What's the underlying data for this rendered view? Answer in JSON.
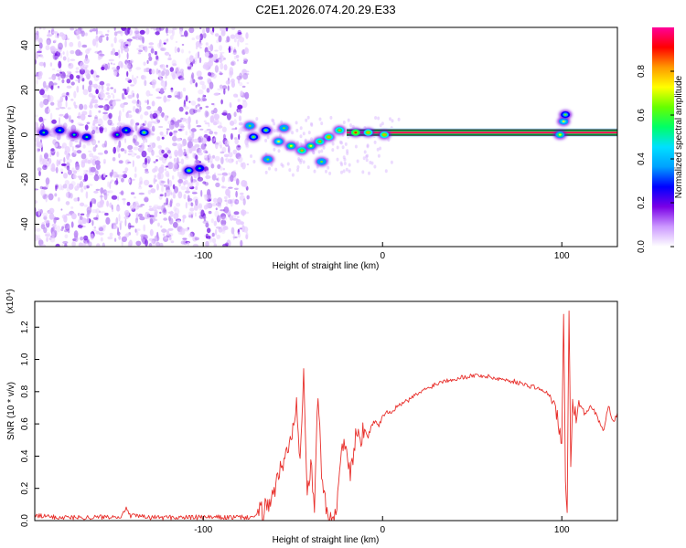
{
  "figure_title": "C2E1.2026.074.20.29.E33",
  "chart_data": [
    {
      "type": "heatmap",
      "name": "spectrogram",
      "title": "C2E1.2026.074.20.29.E33",
      "xlabel": "Height of straight line (km)",
      "ylabel": "Frequency (Hz)",
      "xlim": [
        -194,
        131
      ],
      "ylim": [
        -50,
        48
      ],
      "xticks": [
        -100,
        0,
        100
      ],
      "yticks": [
        -40,
        -20,
        0,
        20,
        40
      ],
      "colorbar": {
        "label": "Normalized spectral amplitude",
        "range": [
          0,
          1
        ],
        "ticks": [
          "0.0",
          "0.2",
          "0.4",
          "0.6",
          "0.8"
        ],
        "colors": [
          "#ffffff",
          "#cc99ff",
          "#7a00e6",
          "#0000ff",
          "#00a0ff",
          "#00e0ff",
          "#00ff66",
          "#66ff00",
          "#ffff00",
          "#ff9900",
          "#ff0000",
          "#ff0099"
        ]
      },
      "noise_region": {
        "x_range": [
          -194,
          -75
        ],
        "y_range": [
          -50,
          48
        ]
      },
      "bright_line": {
        "x_range": [
          -20,
          131
        ],
        "frequency": 1
      },
      "clusters": [
        {
          "x": -189,
          "y": 1,
          "amp": 0.3
        },
        {
          "x": -180,
          "y": 2,
          "amp": 0.3
        },
        {
          "x": -172,
          "y": 0,
          "amp": 0.25
        },
        {
          "x": -165,
          "y": -1,
          "amp": 0.3
        },
        {
          "x": -148,
          "y": 0,
          "amp": 0.25
        },
        {
          "x": -143,
          "y": 2,
          "amp": 0.3
        },
        {
          "x": -133,
          "y": 1,
          "amp": 0.35
        },
        {
          "x": -108,
          "y": -16,
          "amp": 0.35
        },
        {
          "x": -102,
          "y": -15,
          "amp": 0.3
        },
        {
          "x": -74,
          "y": 4,
          "amp": 0.4
        },
        {
          "x": -72,
          "y": -1,
          "amp": 0.35
        },
        {
          "x": -65,
          "y": 2,
          "amp": 0.35
        },
        {
          "x": -64,
          "y": -11,
          "amp": 0.4
        },
        {
          "x": -58,
          "y": -3,
          "amp": 0.45
        },
        {
          "x": -55,
          "y": 3,
          "amp": 0.4
        },
        {
          "x": -51,
          "y": -5,
          "amp": 0.5
        },
        {
          "x": -45,
          "y": -7,
          "amp": 0.55
        },
        {
          "x": -40,
          "y": -5,
          "amp": 0.5
        },
        {
          "x": -35,
          "y": -3,
          "amp": 0.55
        },
        {
          "x": -34,
          "y": -12,
          "amp": 0.4
        },
        {
          "x": -30,
          "y": -1,
          "amp": 0.6
        },
        {
          "x": -24,
          "y": 2,
          "amp": 0.55
        },
        {
          "x": -15,
          "y": 1,
          "amp": 0.65
        },
        {
          "x": -8,
          "y": 1,
          "amp": 0.6
        },
        {
          "x": 1,
          "y": 0,
          "amp": 0.6
        },
        {
          "x": 99,
          "y": 0,
          "amp": 0.5
        },
        {
          "x": 101,
          "y": 6,
          "amp": 0.45
        },
        {
          "x": 102,
          "y": 9,
          "amp": 0.35
        }
      ]
    },
    {
      "type": "line",
      "name": "snr",
      "xlabel": "Height of straight line (km)",
      "ylabel": "SNR (10 * v/v)",
      "y_multiplier": "(x10⁴)",
      "xlim": [
        -194,
        131
      ],
      "ylim": [
        0,
        1.36
      ],
      "xticks": [
        -100,
        0,
        100
      ],
      "yticks": [
        "0.0",
        "0.2",
        "0.4",
        "0.6",
        "0.8",
        "1.0",
        "1.2"
      ],
      "color": "#e8302c",
      "x": [
        -194,
        -180,
        -160,
        -145,
        -143,
        -141,
        -130,
        -110,
        -90,
        -75,
        -70,
        -65,
        -60,
        -56,
        -52,
        -48,
        -46,
        -44,
        -42,
        -40,
        -38,
        -36,
        -34,
        -32,
        -30,
        -28,
        -26,
        -24,
        -22,
        -20,
        -18,
        -16,
        -14,
        -12,
        -10,
        -8,
        -6,
        -4,
        -2,
        0,
        5,
        10,
        15,
        20,
        25,
        30,
        35,
        40,
        45,
        50,
        55,
        60,
        65,
        70,
        75,
        80,
        85,
        90,
        93,
        96,
        98,
        100,
        101,
        102,
        103,
        104,
        105,
        106,
        108,
        110,
        113,
        116,
        120,
        123,
        126,
        129,
        131
      ],
      "values": [
        0.03,
        0.02,
        0.02,
        0.03,
        0.09,
        0.03,
        0.02,
        0.02,
        0.02,
        0.02,
        0.03,
        0.08,
        0.2,
        0.35,
        0.45,
        0.75,
        0.4,
        0.96,
        0.15,
        0.35,
        0.05,
        0.82,
        0.3,
        0.1,
        0.05,
        0.03,
        0.05,
        0.3,
        0.5,
        0.42,
        0.25,
        0.45,
        0.55,
        0.5,
        0.58,
        0.52,
        0.6,
        0.62,
        0.58,
        0.66,
        0.68,
        0.72,
        0.75,
        0.79,
        0.82,
        0.85,
        0.87,
        0.88,
        0.89,
        0.9,
        0.9,
        0.89,
        0.88,
        0.87,
        0.86,
        0.84,
        0.83,
        0.8,
        0.78,
        0.7,
        0.62,
        0.45,
        1.32,
        0.2,
        0.08,
        1.35,
        0.3,
        0.72,
        0.65,
        0.72,
        0.66,
        0.72,
        0.64,
        0.55,
        0.72,
        0.6,
        0.67
      ]
    }
  ]
}
